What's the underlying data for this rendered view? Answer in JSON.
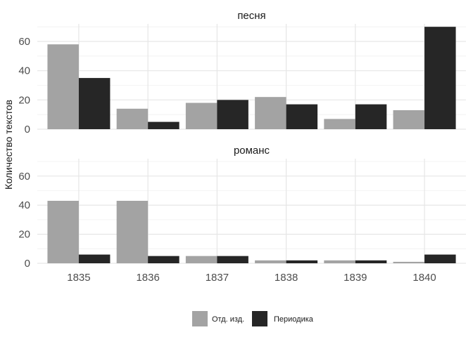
{
  "chart_data": {
    "type": "bar",
    "ylabel": "Количество текстов",
    "xlabel": "",
    "categories": [
      "1835",
      "1836",
      "1837",
      "1838",
      "1839",
      "1840"
    ],
    "ylim": [
      0,
      72
    ],
    "y_ticks": [
      0,
      20,
      40,
      60
    ],
    "grid": true,
    "legend_position": "bottom",
    "colors": {
      "Отд. изд.": "#a3a3a3",
      "Периодика": "#262626"
    },
    "series_names": [
      "Отд. изд.",
      "Периодика"
    ],
    "facets": [
      {
        "title": "песня",
        "series": [
          {
            "name": "Отд. изд.",
            "values": [
              58,
              14,
              18,
              22,
              7,
              13
            ]
          },
          {
            "name": "Периодика",
            "values": [
              35,
              5,
              20,
              17,
              17,
              70
            ]
          }
        ]
      },
      {
        "title": "романс",
        "series": [
          {
            "name": "Отд. изд.",
            "values": [
              43,
              43,
              5,
              2,
              2,
              1
            ]
          },
          {
            "name": "Периодика",
            "values": [
              6,
              5,
              5,
              2,
              2,
              6
            ]
          }
        ]
      }
    ]
  }
}
